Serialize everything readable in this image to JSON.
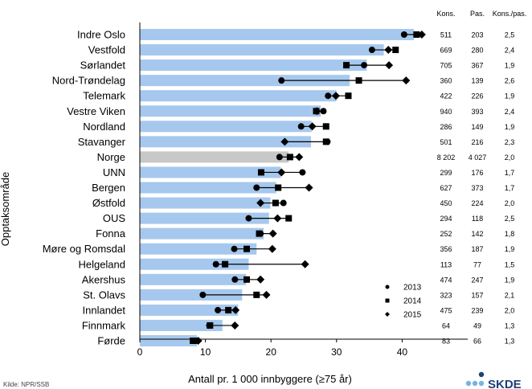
{
  "chart_data": {
    "type": "bar",
    "xlabel": "Antall pr. 1 000 innbyggere (≥75 år)",
    "ylabel": "Opptaksområde",
    "xlim": [
      0,
      50
    ],
    "xticks": [
      0,
      10,
      20,
      30,
      40
    ],
    "grid": false,
    "highlight_category": "Norge",
    "colors": {
      "bar": "#a6c8ee",
      "highlight": "#c8c8c8",
      "marker": "#000000"
    },
    "categories": [
      "Indre Oslo",
      "Vestfold",
      "Sørlandet",
      "Nord-Trøndelag",
      "Telemark",
      "Vestre Viken",
      "Nordland",
      "Stavanger",
      "Norge",
      "UNN",
      "Bergen",
      "Østfold",
      "OUS",
      "Fonna",
      "Møre og Romsdal",
      "Helgeland",
      "Akershus",
      "St. Olavs",
      "Innlandet",
      "Finnmark",
      "Førde"
    ],
    "bar_values": [
      41.8,
      37.2,
      34.6,
      32.0,
      30.0,
      27.6,
      26.2,
      26.1,
      22.7,
      21.5,
      20.8,
      19.9,
      19.7,
      18.9,
      17.8,
      16.6,
      16.2,
      15.6,
      15.0,
      12.6,
      8.7
    ],
    "series": [
      {
        "name": "2013",
        "marker": "circle",
        "values": [
          40.3,
          35.4,
          34.2,
          21.6,
          28.7,
          28.0,
          24.6,
          28.6,
          21.3,
          24.8,
          17.8,
          21.9,
          16.6,
          18.4,
          14.4,
          11.6,
          14.5,
          9.6,
          11.9,
          10.6,
          8.6
        ]
      },
      {
        "name": "2014",
        "marker": "square",
        "values": [
          42.2,
          39.0,
          31.5,
          33.4,
          31.8,
          26.9,
          28.4,
          28.4,
          22.9,
          18.5,
          21.1,
          20.7,
          22.7,
          18.2,
          16.3,
          13.0,
          16.3,
          17.8,
          13.5,
          10.7,
          8.1
        ]
      },
      {
        "name": "2015",
        "marker": "diamond",
        "values": [
          43.0,
          37.9,
          38.0,
          40.6,
          29.9,
          27.0,
          26.3,
          22.1,
          24.3,
          21.6,
          25.8,
          18.4,
          21.0,
          20.3,
          20.2,
          25.2,
          18.4,
          19.3,
          14.6,
          14.5,
          8.9
        ]
      }
    ],
    "table": {
      "headers": [
        "Kons.",
        "Pas.",
        "Kons./pas."
      ],
      "rows": [
        [
          "511",
          "203",
          "2,5"
        ],
        [
          "669",
          "280",
          "2,4"
        ],
        [
          "705",
          "367",
          "1,9"
        ],
        [
          "360",
          "139",
          "2,6"
        ],
        [
          "422",
          "226",
          "1,9"
        ],
        [
          "940",
          "393",
          "2,4"
        ],
        [
          "286",
          "149",
          "1,9"
        ],
        [
          "501",
          "216",
          "2,3"
        ],
        [
          "8 202",
          "4 027",
          "2,0"
        ],
        [
          "299",
          "176",
          "1,7"
        ],
        [
          "627",
          "373",
          "1,7"
        ],
        [
          "450",
          "224",
          "2,0"
        ],
        [
          "294",
          "118",
          "2,5"
        ],
        [
          "252",
          "142",
          "1,8"
        ],
        [
          "356",
          "187",
          "1,9"
        ],
        [
          "113",
          "77",
          "1,5"
        ],
        [
          "474",
          "247",
          "1,9"
        ],
        [
          "323",
          "157",
          "2,1"
        ],
        [
          "475",
          "239",
          "2,0"
        ],
        [
          "64",
          "49",
          "1,3"
        ],
        [
          "83",
          "66",
          "1,3"
        ]
      ]
    },
    "legend": {
      "position": "bottom-right",
      "entries": [
        "2013",
        "2014",
        "2015"
      ]
    }
  },
  "footer": {
    "source": "Kilde: NPR/SSB",
    "logo": "SKDE"
  }
}
